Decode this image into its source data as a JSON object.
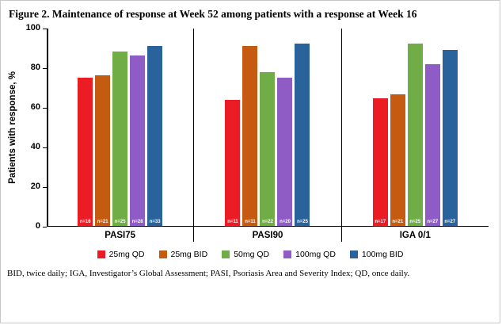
{
  "figure": {
    "title": "Figure 2. Maintenance of response at Week 52 among patients with a response at Week 16",
    "footnote": "BID, twice daily; IGA, Investigator’s Global Assessment; PASI, Psoriasis Area and Severity Index; QD, once daily."
  },
  "chart_data": {
    "type": "bar",
    "title": "Maintenance of response at Week 52 among patients with a response at Week 16",
    "xlabel": "",
    "ylabel": "Patients with response, %",
    "ylim": [
      0,
      100
    ],
    "yticks": [
      0,
      20,
      40,
      60,
      80,
      100
    ],
    "grid": false,
    "legend_position": "bottom",
    "categories": [
      "PASI75",
      "PASI90",
      "IGA 0/1"
    ],
    "series": [
      {
        "name": "25mg QD",
        "color": "#EC1C24",
        "values": [
          75,
          63.5,
          64.5
        ],
        "n_labels": [
          "n=16",
          "n=11",
          "n=17"
        ]
      },
      {
        "name": "25mg BID",
        "color": "#C55A11",
        "values": [
          76,
          91,
          66.5
        ],
        "n_labels": [
          "n=21",
          "n=11",
          "n=21"
        ]
      },
      {
        "name": "50mg QD",
        "color": "#70AD47",
        "values": [
          88,
          77.5,
          92
        ],
        "n_labels": [
          "n=25",
          "n=22",
          "n=25"
        ]
      },
      {
        "name": "100mg QD",
        "color": "#8F5BC5",
        "values": [
          86,
          75,
          81.5
        ],
        "n_labels": [
          "n=28",
          "n=20",
          "n=27"
        ]
      },
      {
        "name": "100mg BID",
        "color": "#2A639C",
        "values": [
          91,
          92,
          89
        ],
        "n_labels": [
          "n=33",
          "n=25",
          "n=27"
        ]
      }
    ]
  }
}
